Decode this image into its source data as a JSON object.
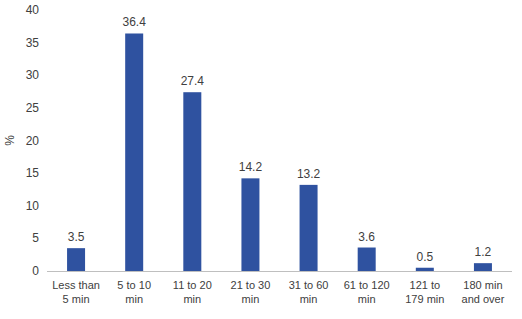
{
  "chart_data": {
    "type": "bar",
    "y_label": "%",
    "categories": [
      "Less than 5 min",
      "5 to 10 min",
      "11 to 20 min",
      "21 to 30 min",
      "31 to 60 min",
      "61 to 120 min",
      "121 to 179 min",
      "180 min and over"
    ],
    "values": [
      3.5,
      36.4,
      27.4,
      14.2,
      13.2,
      3.6,
      0.5,
      1.2
    ],
    "color": "#2f52a0",
    "ylim": [
      0,
      40
    ],
    "yticks": [
      0,
      5,
      10,
      15,
      20,
      25,
      30,
      35,
      40
    ],
    "grid": false,
    "data_labels": true
  }
}
